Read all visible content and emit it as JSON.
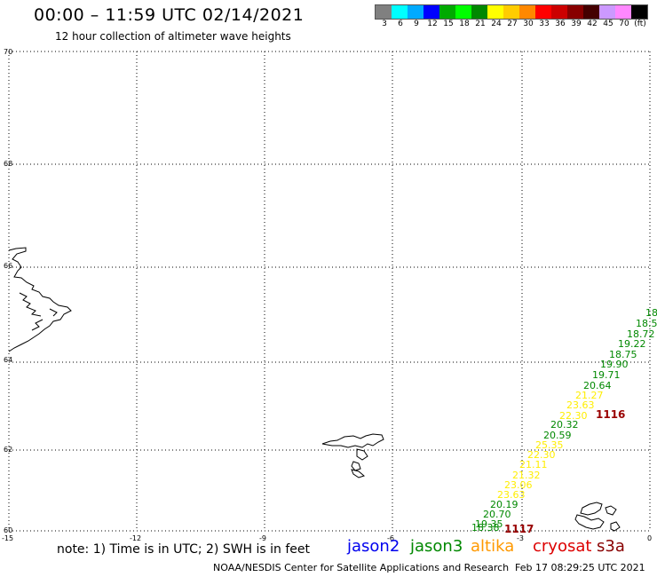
{
  "header": {
    "title": "00:00 – 11:59 UTC 02/14/2021",
    "subtitle": "12 hour collection of altimeter wave heights"
  },
  "legend": {
    "colors": [
      "#808080",
      "#00ffff",
      "#00aaff",
      "#0000ff",
      "#00aa00",
      "#00ff00",
      "#008800",
      "#ffff00",
      "#ffcc00",
      "#ff8800",
      "#ff0000",
      "#cc0000",
      "#880000",
      "#440000",
      "#cc99ff",
      "#ff88ff",
      "#000000"
    ],
    "labels": [
      "3",
      "6",
      "9",
      "12",
      "15",
      "18",
      "21",
      "24",
      "27",
      "30",
      "33",
      "36",
      "39",
      "42",
      "45",
      "70",
      "(ft)"
    ]
  },
  "map": {
    "lat_labels": [
      "70",
      "68",
      "66",
      "64",
      "62",
      "60"
    ],
    "lon_labels": [
      "-15",
      "-12",
      "-9",
      "-6",
      "-3",
      "0"
    ],
    "track_ids": [
      "1116",
      "1117"
    ],
    "observations": [
      {
        "value": "18",
        "color": "#008800"
      },
      {
        "value": "18.5",
        "color": "#008800"
      },
      {
        "value": "18.72",
        "color": "#008800"
      },
      {
        "value": "19.22",
        "color": "#008800"
      },
      {
        "value": "18.75",
        "color": "#008800"
      },
      {
        "value": "19.90",
        "color": "#008800"
      },
      {
        "value": "19.71",
        "color": "#008800"
      },
      {
        "value": "20.64",
        "color": "#008800"
      },
      {
        "value": "21.27",
        "color": "#ffee00"
      },
      {
        "value": "23.63",
        "color": "#ffee00"
      },
      {
        "value": "22.30",
        "color": "#ffee00"
      },
      {
        "value": "20.32",
        "color": "#008800"
      },
      {
        "value": "20.59",
        "color": "#008800"
      },
      {
        "value": "25.35",
        "color": "#ffee00"
      },
      {
        "value": "22.30",
        "color": "#ffee00"
      },
      {
        "value": "21.11",
        "color": "#ffee00"
      },
      {
        "value": "21.32",
        "color": "#ffee00"
      },
      {
        "value": "23.06",
        "color": "#ffee00"
      },
      {
        "value": "23.63",
        "color": "#ffee00"
      },
      {
        "value": "20.19",
        "color": "#008800"
      },
      {
        "value": "20.70",
        "color": "#008800"
      },
      {
        "value": "19.35",
        "color": "#008800"
      },
      {
        "value": "18.38",
        "color": "#008800"
      }
    ]
  },
  "footer": {
    "note": "note:  1) Time is in UTC;  2) SWH is in feet",
    "missions": [
      {
        "name": "jason2",
        "color": "#0000ee"
      },
      {
        "name": "jason3",
        "color": "#008800"
      },
      {
        "name": "altika",
        "color": "#ff9900"
      },
      {
        "name": "cryosat",
        "color": "#dd0000"
      },
      {
        "name": "s3a",
        "color": "#880000"
      }
    ],
    "credit": "NOAA/NESDIS Center for Satellite Applications and Research",
    "timestamp": "Feb 17 08:29:25 UTC 2021"
  }
}
